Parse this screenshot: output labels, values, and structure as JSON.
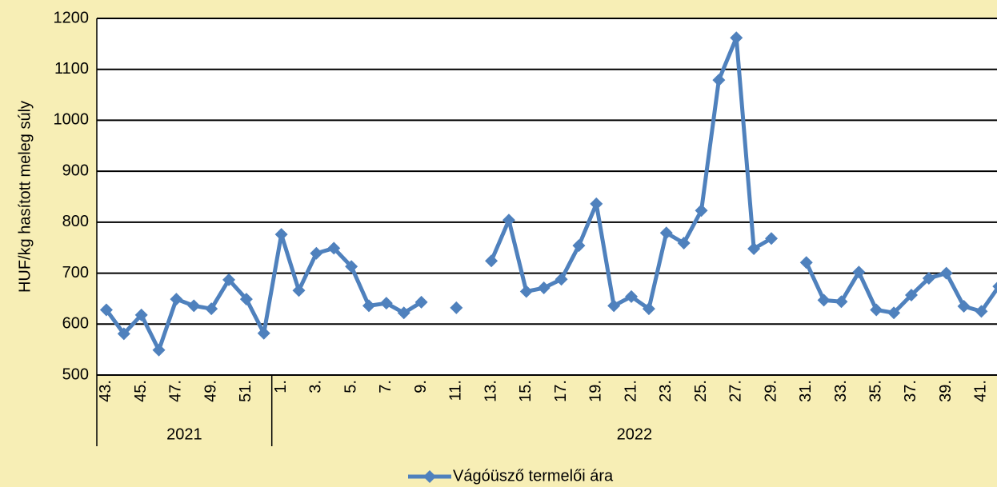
{
  "chart_data": {
    "type": "line",
    "y_label": "HUF/kg hasított meleg súly",
    "categories": [
      "43.",
      null,
      "45.",
      null,
      "47.",
      null,
      "49.",
      null,
      "51.",
      null,
      "1.",
      null,
      "3.",
      null,
      "5.",
      null,
      "7.",
      null,
      "9.",
      null,
      "11.",
      null,
      "13.",
      null,
      "15.",
      null,
      "17.",
      null,
      "19.",
      null,
      "21.",
      null,
      "23.",
      null,
      "25.",
      null,
      "27.",
      null,
      "29.",
      null,
      "31.",
      null,
      "33.",
      null,
      "35.",
      null,
      "37.",
      null,
      "39.",
      null,
      "41.",
      null
    ],
    "x_groups": [
      "2021",
      "2022"
    ],
    "series": [
      {
        "name": "Vágóüsző termelői ára",
        "color": "#4f81bd",
        "values": [
          628,
          581,
          618,
          549,
          649,
          636,
          630,
          687,
          649,
          582,
          776,
          666,
          739,
          749,
          713,
          636,
          641,
          622,
          643,
          null,
          632,
          null,
          724,
          804,
          664,
          671,
          688,
          754,
          836,
          636,
          654,
          630,
          779,
          759,
          823,
          1079,
          1162,
          748,
          768,
          null,
          721,
          647,
          644,
          702,
          628,
          622,
          657,
          690,
          700,
          635,
          625,
          674
        ]
      }
    ],
    "ylim": [
      500,
      1200
    ],
    "yticks": [
      500,
      600,
      700,
      800,
      900,
      1000,
      1100,
      1200
    ],
    "grid": true,
    "legend": "bottom"
  }
}
